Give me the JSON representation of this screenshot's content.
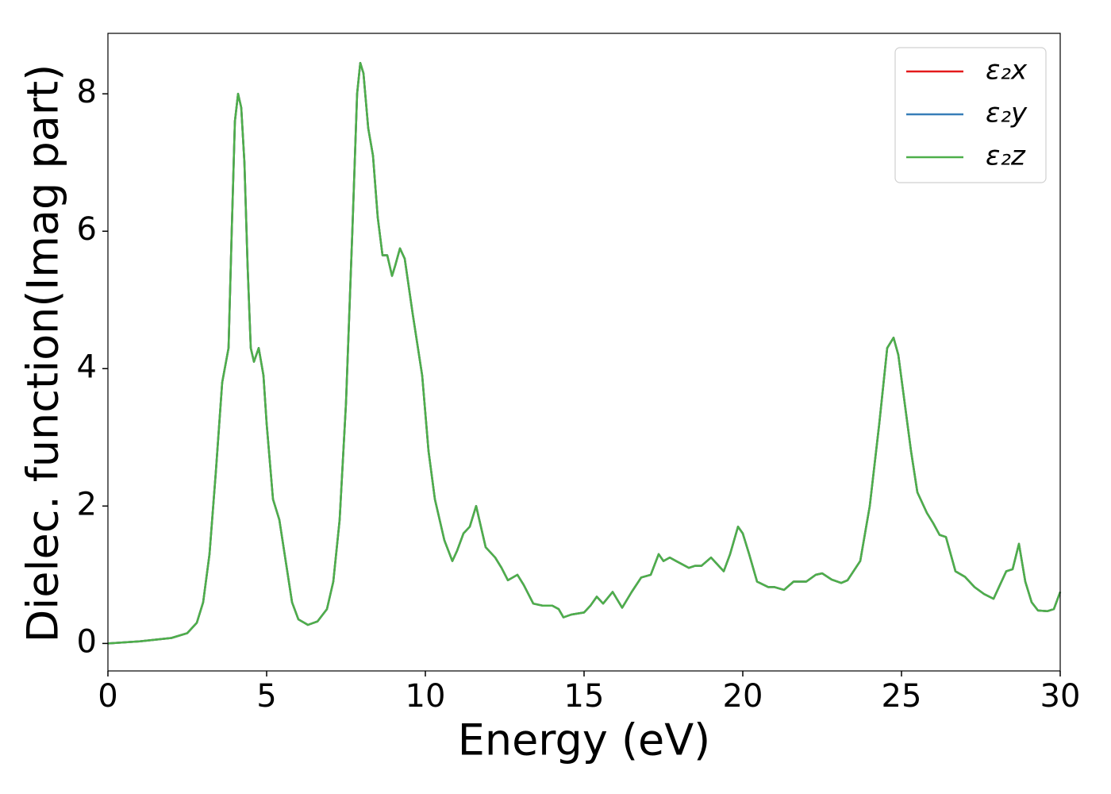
{
  "chart_data": {
    "type": "line",
    "xlabel": "Energy (eV)",
    "ylabel": "Dielec. function(Imag part)",
    "xlim": [
      0,
      30
    ],
    "xticks": [
      0,
      5,
      10,
      15,
      20,
      25,
      30
    ],
    "ylim": [
      -0.4,
      8.88
    ],
    "yticks": [
      0,
      2,
      4,
      6,
      8
    ],
    "legend": "upper right",
    "x": [
      0,
      1,
      2,
      2.5,
      2.8,
      3.0,
      3.2,
      3.4,
      3.6,
      3.8,
      3.9,
      4.0,
      4.1,
      4.2,
      4.3,
      4.4,
      4.5,
      4.6,
      4.75,
      4.9,
      5.0,
      5.2,
      5.4,
      5.6,
      5.8,
      6.0,
      6.3,
      6.6,
      6.9,
      7.1,
      7.3,
      7.5,
      7.7,
      7.85,
      7.95,
      8.05,
      8.2,
      8.35,
      8.5,
      8.65,
      8.8,
      8.95,
      9.05,
      9.2,
      9.35,
      9.6,
      9.9,
      10.1,
      10.3,
      10.6,
      10.85,
      11.0,
      11.2,
      11.4,
      11.6,
      11.75,
      11.9,
      12.2,
      12.4,
      12.6,
      12.9,
      13.1,
      13.4,
      13.7,
      14.0,
      14.2,
      14.35,
      14.6,
      15.0,
      15.2,
      15.4,
      15.6,
      15.9,
      16.2,
      16.5,
      16.8,
      17.1,
      17.35,
      17.5,
      17.7,
      17.9,
      18.1,
      18.3,
      18.5,
      18.7,
      19.0,
      19.2,
      19.4,
      19.6,
      19.85,
      20.0,
      20.2,
      20.45,
      20.8,
      21.0,
      21.3,
      21.6,
      22.0,
      22.3,
      22.5,
      22.8,
      23.1,
      23.3,
      23.7,
      24.0,
      24.3,
      24.55,
      24.75,
      24.9,
      25.1,
      25.3,
      25.5,
      25.8,
      26.0,
      26.2,
      26.4,
      26.7,
      27.0,
      27.3,
      27.6,
      27.9,
      28.1,
      28.3,
      28.5,
      28.7,
      28.9,
      29.1,
      29.3,
      29.6,
      29.8,
      30.0
    ],
    "series": [
      {
        "name": "ε₂x",
        "color": "#e41a1c",
        "values": [
          0.0,
          0.03,
          0.08,
          0.15,
          0.3,
          0.6,
          1.3,
          2.5,
          3.8,
          4.3,
          6.0,
          7.6,
          8.0,
          7.8,
          7.0,
          5.5,
          4.3,
          4.1,
          4.3,
          3.9,
          3.2,
          2.1,
          1.8,
          1.2,
          0.6,
          0.35,
          0.27,
          0.32,
          0.5,
          0.9,
          1.8,
          3.5,
          6.0,
          8.0,
          8.45,
          8.3,
          7.5,
          7.1,
          6.2,
          5.65,
          5.65,
          5.35,
          5.5,
          5.75,
          5.6,
          4.8,
          3.9,
          2.8,
          2.1,
          1.5,
          1.2,
          1.35,
          1.6,
          1.7,
          2.0,
          1.7,
          1.4,
          1.25,
          1.1,
          0.92,
          1.0,
          0.85,
          0.58,
          0.55,
          0.55,
          0.5,
          0.38,
          0.42,
          0.45,
          0.55,
          0.68,
          0.58,
          0.75,
          0.52,
          0.75,
          0.96,
          1.0,
          1.3,
          1.2,
          1.25,
          1.2,
          1.15,
          1.1,
          1.13,
          1.13,
          1.25,
          1.15,
          1.05,
          1.3,
          1.7,
          1.6,
          1.3,
          0.9,
          0.82,
          0.82,
          0.78,
          0.9,
          0.9,
          1.0,
          1.02,
          0.93,
          0.88,
          0.92,
          1.2,
          2.0,
          3.2,
          4.3,
          4.45,
          4.2,
          3.5,
          2.8,
          2.2,
          1.9,
          1.75,
          1.58,
          1.55,
          1.05,
          0.97,
          0.82,
          0.72,
          0.65,
          0.85,
          1.05,
          1.08,
          1.45,
          0.9,
          0.6,
          0.48,
          0.47,
          0.5,
          0.75
        ]
      },
      {
        "name": "ε₂y",
        "color": "#377eb8",
        "values": [
          0.0,
          0.03,
          0.08,
          0.15,
          0.3,
          0.6,
          1.3,
          2.5,
          3.8,
          4.3,
          6.0,
          7.6,
          8.0,
          7.8,
          7.0,
          5.5,
          4.3,
          4.1,
          4.3,
          3.9,
          3.2,
          2.1,
          1.8,
          1.2,
          0.6,
          0.35,
          0.27,
          0.32,
          0.5,
          0.9,
          1.8,
          3.5,
          6.0,
          8.0,
          8.45,
          8.3,
          7.5,
          7.1,
          6.2,
          5.65,
          5.65,
          5.35,
          5.5,
          5.75,
          5.6,
          4.8,
          3.9,
          2.8,
          2.1,
          1.5,
          1.2,
          1.35,
          1.6,
          1.7,
          2.0,
          1.7,
          1.4,
          1.25,
          1.1,
          0.92,
          1.0,
          0.85,
          0.58,
          0.55,
          0.55,
          0.5,
          0.38,
          0.42,
          0.45,
          0.55,
          0.68,
          0.58,
          0.75,
          0.52,
          0.75,
          0.96,
          1.0,
          1.3,
          1.2,
          1.25,
          1.2,
          1.15,
          1.1,
          1.13,
          1.13,
          1.25,
          1.15,
          1.05,
          1.3,
          1.7,
          1.6,
          1.3,
          0.9,
          0.82,
          0.82,
          0.78,
          0.9,
          0.9,
          1.0,
          1.02,
          0.93,
          0.88,
          0.92,
          1.2,
          2.0,
          3.2,
          4.3,
          4.45,
          4.2,
          3.5,
          2.8,
          2.2,
          1.9,
          1.75,
          1.58,
          1.55,
          1.05,
          0.97,
          0.82,
          0.72,
          0.65,
          0.85,
          1.05,
          1.08,
          1.45,
          0.9,
          0.6,
          0.48,
          0.47,
          0.5,
          0.75
        ]
      },
      {
        "name": "ε₂z",
        "color": "#4daf4a",
        "values": [
          0.0,
          0.03,
          0.08,
          0.15,
          0.3,
          0.6,
          1.3,
          2.5,
          3.8,
          4.3,
          6.0,
          7.6,
          8.0,
          7.8,
          7.0,
          5.5,
          4.3,
          4.1,
          4.3,
          3.9,
          3.2,
          2.1,
          1.8,
          1.2,
          0.6,
          0.35,
          0.27,
          0.32,
          0.5,
          0.9,
          1.8,
          3.5,
          6.0,
          8.0,
          8.45,
          8.3,
          7.5,
          7.1,
          6.2,
          5.65,
          5.65,
          5.35,
          5.5,
          5.75,
          5.6,
          4.8,
          3.9,
          2.8,
          2.1,
          1.5,
          1.2,
          1.35,
          1.6,
          1.7,
          2.0,
          1.7,
          1.4,
          1.25,
          1.1,
          0.92,
          1.0,
          0.85,
          0.58,
          0.55,
          0.55,
          0.5,
          0.38,
          0.42,
          0.45,
          0.55,
          0.68,
          0.58,
          0.75,
          0.52,
          0.75,
          0.96,
          1.0,
          1.3,
          1.2,
          1.25,
          1.2,
          1.15,
          1.1,
          1.13,
          1.13,
          1.25,
          1.15,
          1.05,
          1.3,
          1.7,
          1.6,
          1.3,
          0.9,
          0.82,
          0.82,
          0.78,
          0.9,
          0.9,
          1.0,
          1.02,
          0.93,
          0.88,
          0.92,
          1.2,
          2.0,
          3.2,
          4.3,
          4.45,
          4.2,
          3.5,
          2.8,
          2.2,
          1.9,
          1.75,
          1.58,
          1.55,
          1.05,
          0.97,
          0.82,
          0.72,
          0.65,
          0.85,
          1.05,
          1.08,
          1.45,
          0.9,
          0.6,
          0.48,
          0.47,
          0.5,
          0.75
        ]
      }
    ]
  }
}
